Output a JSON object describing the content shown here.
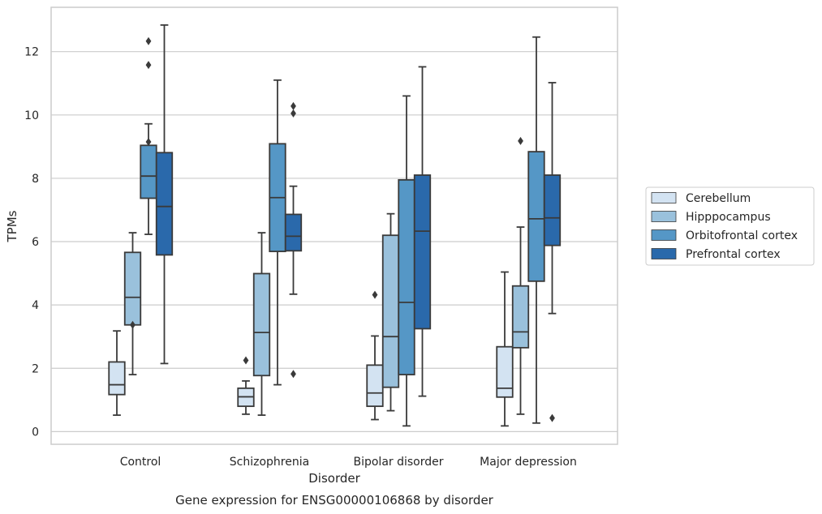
{
  "chart_data": {
    "type": "boxplot",
    "title": "",
    "caption": "Gene expression for ENSG00000106868 by disorder",
    "xlabel": "Disorder",
    "ylabel": "TPMs",
    "ylim": [
      -0.4,
      13.4
    ],
    "yticks": [
      0,
      2,
      4,
      6,
      8,
      10,
      12
    ],
    "grid": "horizontal",
    "legend_position": "right",
    "categories": [
      "Control",
      "Schizophrenia",
      "Bipolar disorder",
      "Major depression"
    ],
    "series": [
      {
        "name": "Cerebellum",
        "color": "#d3e3f2",
        "boxes": [
          {
            "whisker_low": 0.52,
            "q1": 1.17,
            "median": 1.48,
            "q3": 2.2,
            "whisker_high": 3.18,
            "outliers": []
          },
          {
            "whisker_low": 0.55,
            "q1": 0.8,
            "median": 1.1,
            "q3": 1.37,
            "whisker_high": 1.6,
            "outliers": [
              2.25
            ]
          },
          {
            "whisker_low": 0.38,
            "q1": 0.8,
            "median": 1.22,
            "q3": 2.1,
            "whisker_high": 3.02,
            "outliers": [
              4.32
            ]
          },
          {
            "whisker_low": 0.18,
            "q1": 1.09,
            "median": 1.37,
            "q3": 2.68,
            "whisker_high": 5.04,
            "outliers": []
          }
        ]
      },
      {
        "name": "Hipppocampus",
        "color": "#9ac1dc",
        "boxes": [
          {
            "whisker_low": 1.8,
            "q1": 3.37,
            "median": 4.24,
            "q3": 5.66,
            "whisker_high": 6.28,
            "outliers": [
              3.37
            ]
          },
          {
            "whisker_low": 0.52,
            "q1": 1.77,
            "median": 3.13,
            "q3": 4.99,
            "whisker_high": 6.28,
            "outliers": []
          },
          {
            "whisker_low": 0.66,
            "q1": 1.4,
            "median": 3.0,
            "q3": 6.2,
            "whisker_high": 6.88,
            "outliers": []
          },
          {
            "whisker_low": 0.55,
            "q1": 2.65,
            "median": 3.15,
            "q3": 4.6,
            "whisker_high": 6.46,
            "outliers": [
              9.18
            ]
          }
        ]
      },
      {
        "name": "Orbitofrontal cortex",
        "color": "#5597c6",
        "boxes": [
          {
            "whisker_low": 6.23,
            "q1": 7.37,
            "median": 8.07,
            "q3": 9.04,
            "whisker_high": 9.72,
            "outliers": [
              9.15,
              11.58,
              12.33
            ]
          },
          {
            "whisker_low": 1.48,
            "q1": 5.69,
            "median": 7.39,
            "q3": 9.09,
            "whisker_high": 11.1,
            "outliers": []
          },
          {
            "whisker_low": 0.18,
            "q1": 1.8,
            "median": 4.08,
            "q3": 7.95,
            "whisker_high": 10.6,
            "outliers": []
          },
          {
            "whisker_low": 0.27,
            "q1": 4.75,
            "median": 6.72,
            "q3": 8.84,
            "whisker_high": 12.46,
            "outliers": []
          }
        ]
      },
      {
        "name": "Prefrontal cortex",
        "color": "#2a69ab",
        "boxes": [
          {
            "whisker_low": 2.15,
            "q1": 5.58,
            "median": 7.11,
            "q3": 8.81,
            "whisker_high": 12.84,
            "outliers": []
          },
          {
            "whisker_low": 4.34,
            "q1": 5.71,
            "median": 6.17,
            "q3": 6.86,
            "whisker_high": 7.75,
            "outliers": [
              1.82,
              10.05,
              10.28
            ]
          },
          {
            "whisker_low": 1.12,
            "q1": 3.25,
            "median": 6.33,
            "q3": 8.1,
            "whisker_high": 11.52,
            "outliers": []
          },
          {
            "whisker_low": 3.73,
            "q1": 5.88,
            "median": 6.75,
            "q3": 8.1,
            "whisker_high": 11.02,
            "outliers": [
              0.43
            ]
          }
        ]
      }
    ]
  }
}
